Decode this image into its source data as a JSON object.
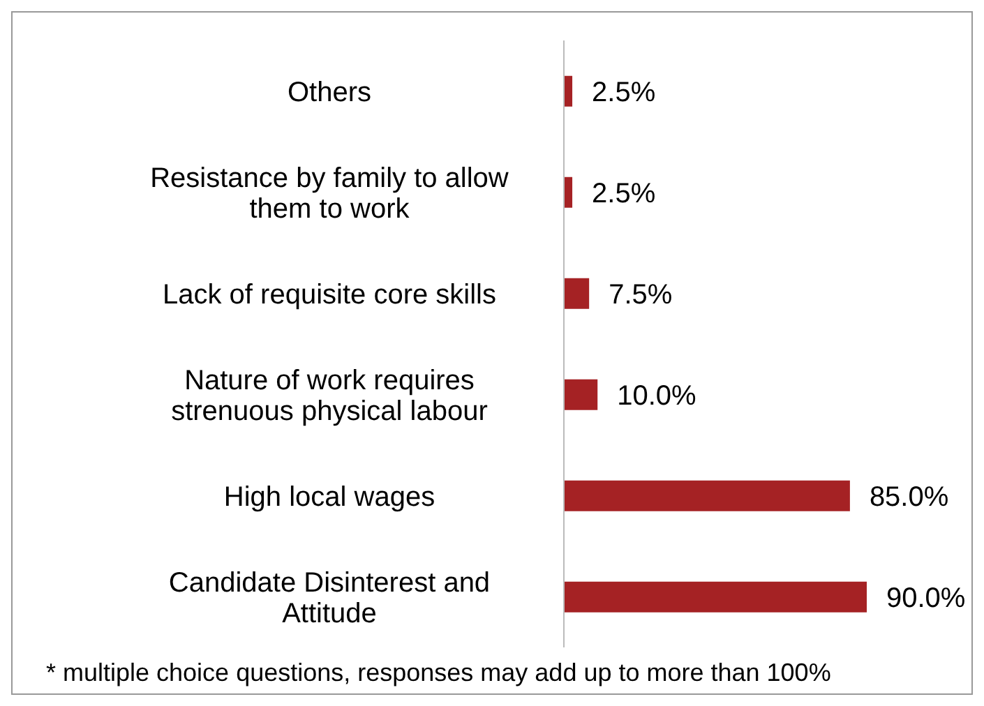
{
  "chart_data": {
    "type": "bar",
    "orientation": "horizontal",
    "categories": [
      "Others",
      "Resistance by family to allow them to work",
      "Lack of requisite core skills",
      "Nature of work requires strenuous physical labour",
      "High local wages",
      "Candidate Disinterest and Attitude"
    ],
    "values": [
      2.5,
      2.5,
      7.5,
      10.0,
      85.0,
      90.0
    ],
    "value_labels": [
      "2.5%",
      "2.5%",
      "7.5%",
      "10.0%",
      "85.0%",
      "90.0%"
    ],
    "color": "#a52224",
    "tick_labels": "y",
    "annotations": [
      "* multiple choice questions, responses may add up to more than 100%"
    ]
  }
}
